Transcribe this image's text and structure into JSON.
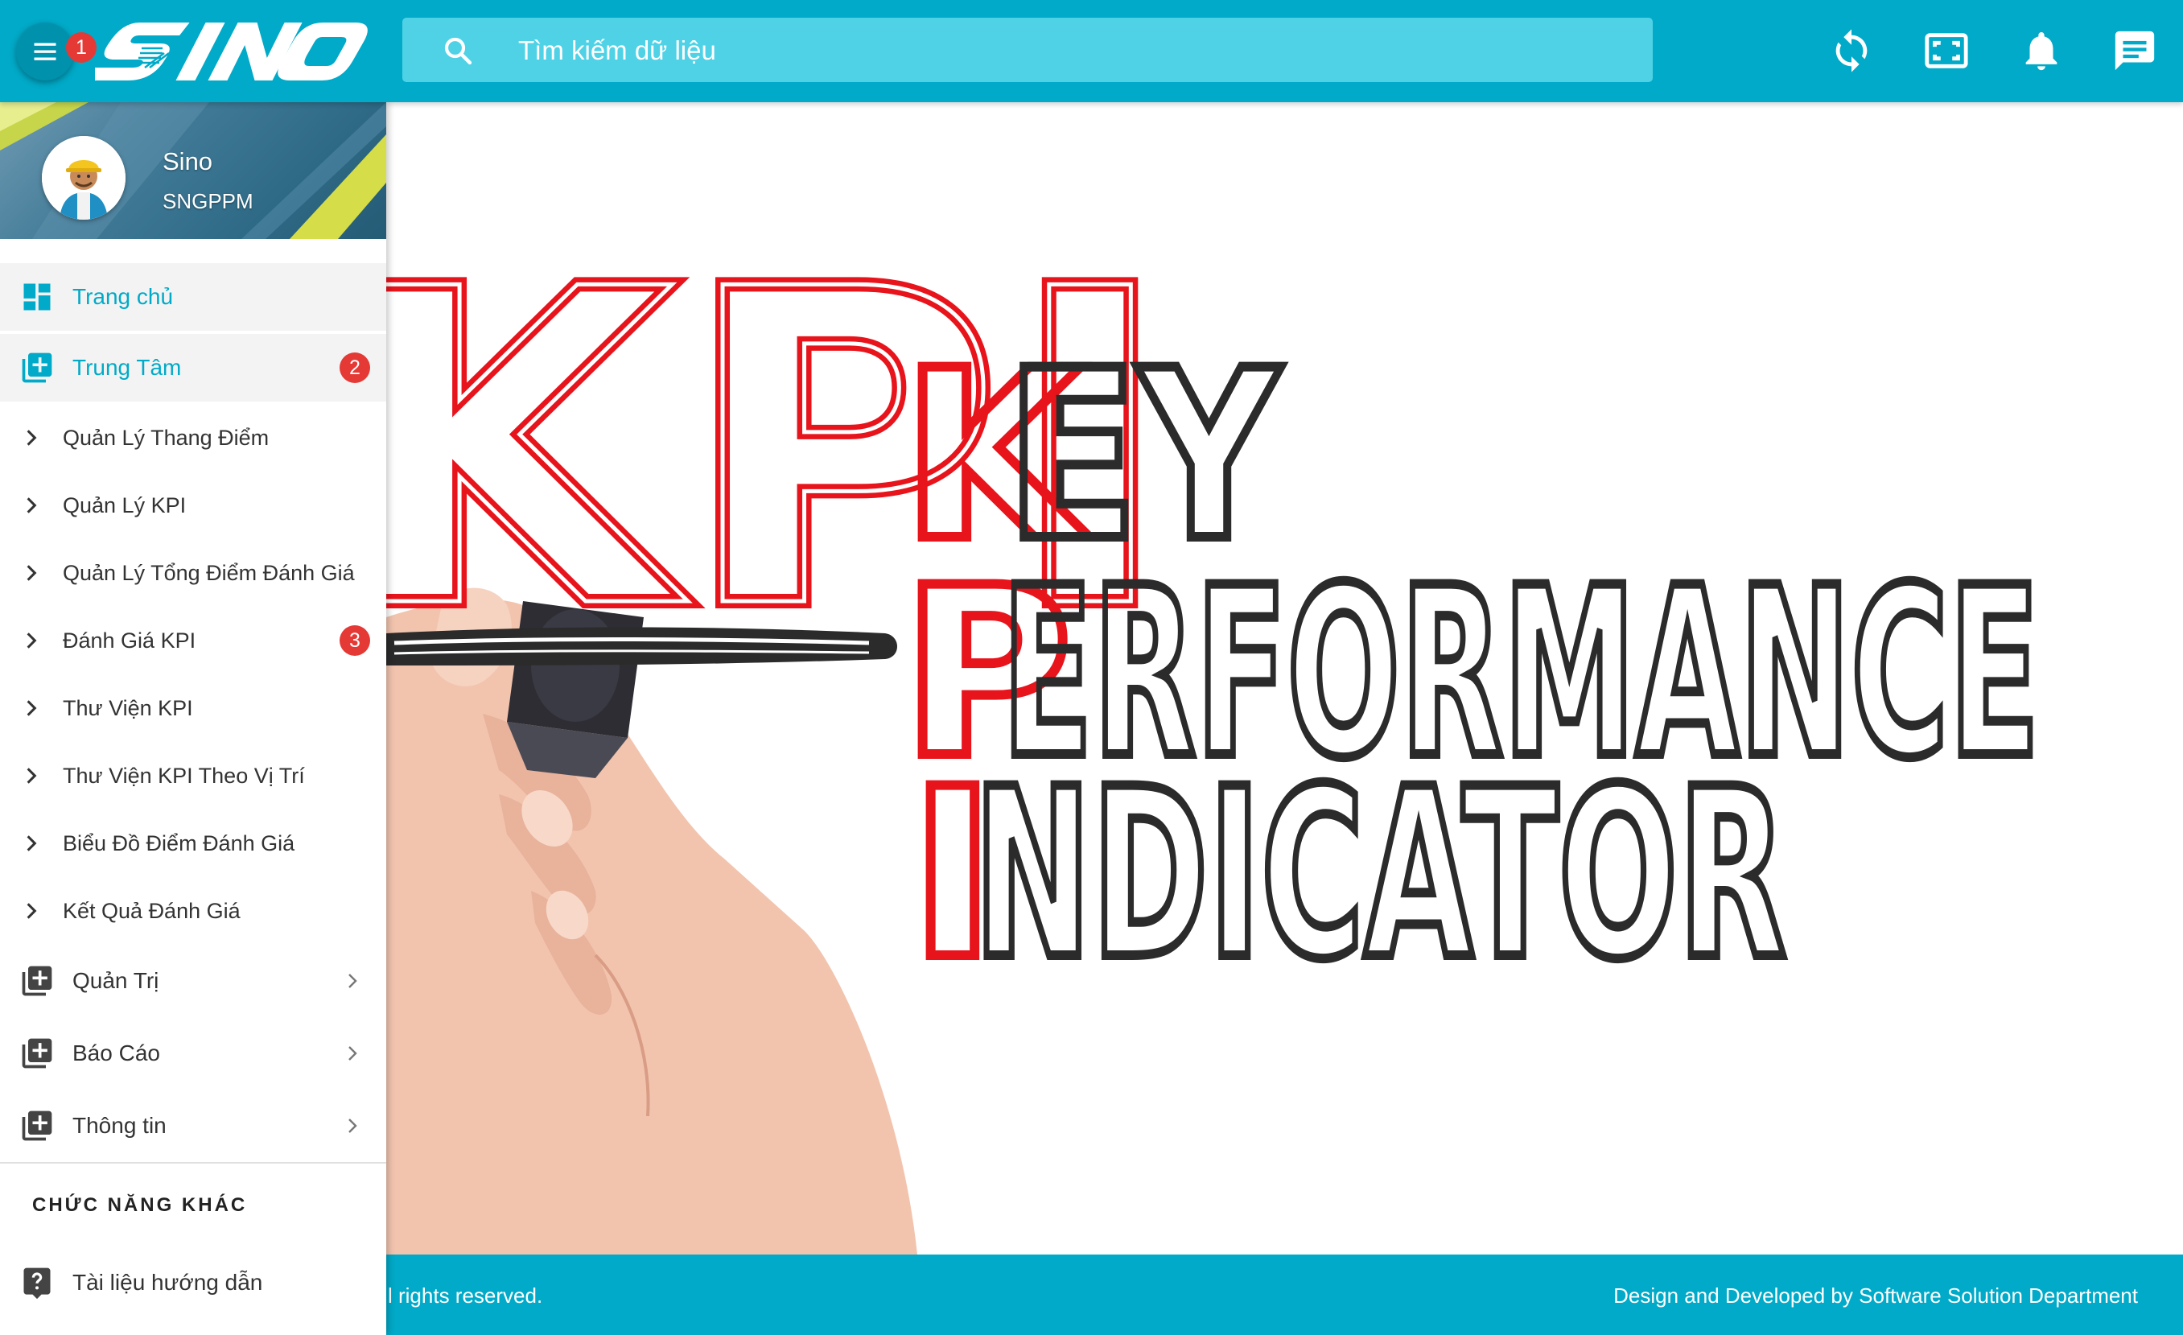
{
  "header": {
    "menu_badge": "1",
    "search_placeholder": "Tìm kiếm dữ liệu"
  },
  "profile": {
    "name": "Sino",
    "org": "SNGPPM"
  },
  "nav": {
    "home": "Trang chủ",
    "center": "Trung Tâm",
    "center_badge": "2",
    "sub_items": [
      "Quản Lý Thang Điểm",
      "Quản Lý KPI",
      "Quản Lý Tổng Điểm Đánh Giá",
      "Đánh Giá KPI",
      "Thư Viện KPI",
      "Thư Viện KPI Theo Vị Trí",
      "Biểu Đồ Điểm Đánh Giá",
      "Kết Quả Đánh Giá"
    ],
    "eval_badge": "3",
    "groups": [
      "Quản Trị",
      "Báo Cáo",
      "Thông tin"
    ],
    "other_title": "CHỨC NĂNG KHÁC",
    "guide": "Tài liệu hướng dẫn"
  },
  "hero": {
    "kpi_text": "KPI",
    "word1_initial": "K",
    "word1_rest": "EY",
    "word2_initial": "P",
    "word2_rest": "ERFORMANCE",
    "word3_initial": "I",
    "word3_rest": "NDICATOR"
  },
  "footer": {
    "left": "l rights reserved.",
    "right_prefix": "Design and Developed by",
    "right_dept": "Software Solution Department"
  },
  "colors": {
    "primary": "#00aac8",
    "badge": "#e53935",
    "hero_red": "#e8141c",
    "hero_dark": "#2b2b2b"
  }
}
